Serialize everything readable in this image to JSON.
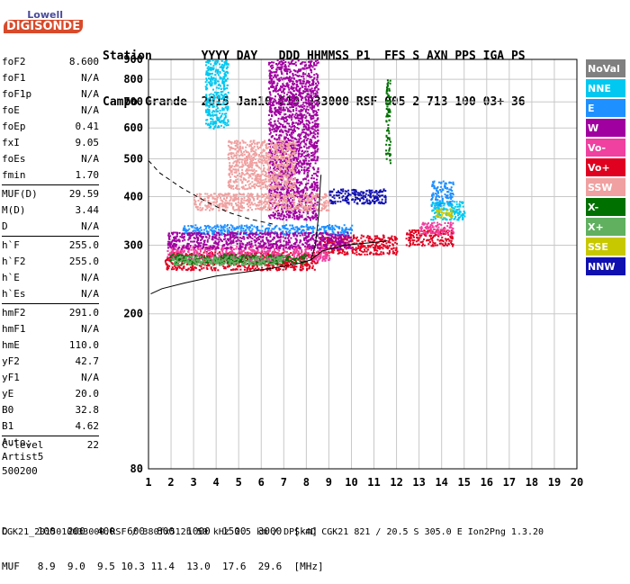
{
  "logo": {
    "top": "Lowell",
    "bottom": "DIGISONDE"
  },
  "header": {
    "line1": "Station       YYYY DAY   DDD HHMMSS P1  FFS S AXN PPS IGA PS",
    "line2": "Campo Grande  2015 Jan10 010 033000 RSF 005 2 713 100 03+ 36"
  },
  "params": [
    {
      "label": "foF2",
      "value": "8.600"
    },
    {
      "label": "foF1",
      "value": "N/A"
    },
    {
      "label": "foF1p",
      "value": "N/A"
    },
    {
      "label": "foE",
      "value": "N/A"
    },
    {
      "label": "foEp",
      "value": "0.41"
    },
    {
      "label": "fxI",
      "value": "9.05"
    },
    {
      "label": "foEs",
      "value": "N/A"
    },
    {
      "label": "fmin",
      "value": "1.70"
    },
    {
      "sep": true
    },
    {
      "label": "MUF(D)",
      "value": "29.59"
    },
    {
      "label": "M(D)",
      "value": "3.44"
    },
    {
      "label": "D",
      "value": "N/A"
    },
    {
      "sep": true
    },
    {
      "label": "h`F",
      "value": "255.0"
    },
    {
      "label": "h`F2",
      "value": "255.0"
    },
    {
      "label": "h`E",
      "value": "N/A"
    },
    {
      "label": "h`Es",
      "value": "N/A"
    },
    {
      "sep": true
    },
    {
      "label": "hmF2",
      "value": "291.0"
    },
    {
      "label": "hmF1",
      "value": "N/A"
    },
    {
      "label": "hmE",
      "value": "110.0"
    },
    {
      "label": "yF2",
      "value": "42.7"
    },
    {
      "label": "yF1",
      "value": "N/A"
    },
    {
      "label": "yE",
      "value": "20.0"
    },
    {
      "label": "B0",
      "value": "32.8"
    },
    {
      "label": "B1",
      "value": "4.62"
    },
    {
      "sep": true
    },
    {
      "label": "C-level",
      "value": "22"
    }
  ],
  "auto": {
    "line1": "Auto:",
    "line2": "Artist5",
    "line3": "500200"
  },
  "footer": {
    "d_row": "D     100  200  400  600  800  1000  1500  3000  [km]",
    "muf_row": "MUF   8.9  9.0  9.5 10.3 11.4  13.0  17.6  29.6  [MHz]",
    "info": "CGK21_2015010033000.RSF / 380fx512h 50 kHz 2.5 km / DPS-4D CGK21 821 / 20.5 S 305.0 E Ion2Png 1.3.20"
  },
  "legend": [
    {
      "label": "NoVal",
      "color": "#808080"
    },
    {
      "label": "NNE",
      "color": "#00c8f0"
    },
    {
      "label": "E",
      "color": "#1e90ff"
    },
    {
      "label": "W",
      "color": "#a000a0"
    },
    {
      "label": "Vo-",
      "color": "#f040a0"
    },
    {
      "label": "Vo+",
      "color": "#e00020"
    },
    {
      "label": "SSW",
      "color": "#f0a0a0"
    },
    {
      "label": "X-",
      "color": "#007000"
    },
    {
      "label": "X+",
      "color": "#60b060"
    },
    {
      "label": "SSE",
      "color": "#c8c800"
    },
    {
      "label": "NNW",
      "color": "#1010b0"
    }
  ],
  "chart_data": {
    "type": "scatter",
    "xlabel": "",
    "ylabel": "",
    "xlim": [
      1,
      20
    ],
    "ylim": [
      80,
      900
    ],
    "yscale": "log",
    "xticks": [
      1,
      2,
      3,
      4,
      5,
      6,
      7,
      8,
      9,
      10,
      11,
      12,
      13,
      14,
      15,
      16,
      17,
      18,
      19,
      20
    ],
    "yticks": [
      80,
      200,
      300,
      400,
      500,
      600,
      700,
      800,
      900
    ],
    "grid": true,
    "series": [
      {
        "name": "Vo+",
        "color": "#e00020",
        "clusters": [
          {
            "x": [
              1.7,
              8.5
            ],
            "y": [
              260,
              290
            ]
          },
          {
            "x": [
              8.5,
              12
            ],
            "y": [
              285,
              320
            ]
          },
          {
            "x": [
              12.4,
              14.5
            ],
            "y": [
              300,
              330
            ]
          }
        ]
      },
      {
        "name": "Vo-",
        "color": "#f040a0",
        "clusters": [
          {
            "x": [
              1.8,
              9
            ],
            "y": [
              275,
              300
            ]
          },
          {
            "x": [
              13,
              14.5
            ],
            "y": [
              320,
              345
            ]
          }
        ]
      },
      {
        "name": "E",
        "color": "#1e90ff",
        "clusters": [
          {
            "x": [
              2.5,
              10
            ],
            "y": [
              320,
              340
            ]
          },
          {
            "x": [
              13.5,
              14.5
            ],
            "y": [
              380,
              440
            ]
          }
        ]
      },
      {
        "name": "W",
        "color": "#a000a0",
        "clusters": [
          {
            "x": [
              1.8,
              10
            ],
            "y": [
              295,
              325
            ]
          },
          {
            "x": [
              6.3,
              8.5
            ],
            "y": [
              350,
              900
            ]
          }
        ]
      },
      {
        "name": "SSW",
        "color": "#f0a0a0",
        "clusters": [
          {
            "x": [
              3,
              9
            ],
            "y": [
              370,
              410
            ]
          },
          {
            "x": [
              4.5,
              7.5
            ],
            "y": [
              420,
              560
            ]
          }
        ]
      },
      {
        "name": "NNW",
        "color": "#1010b0",
        "clusters": [
          {
            "x": [
              9,
              11.5
            ],
            "y": [
              385,
              420
            ]
          }
        ]
      },
      {
        "name": "NNE",
        "color": "#00c8f0",
        "clusters": [
          {
            "x": [
              13.5,
              15
            ],
            "y": [
              350,
              390
            ]
          },
          {
            "x": [
              3.5,
              4.5
            ],
            "y": [
              600,
              900
            ]
          }
        ]
      },
      {
        "name": "SSE",
        "color": "#c8c800",
        "clusters": [
          {
            "x": [
              13.7,
              14.5
            ],
            "y": [
              355,
              375
            ]
          }
        ]
      },
      {
        "name": "X-",
        "color": "#007000",
        "clusters": [
          {
            "x": [
              1.8,
              8
            ],
            "y": [
              270,
              285
            ]
          },
          {
            "x": [
              11.5,
              11.7
            ],
            "y": [
              480,
              800
            ]
          }
        ]
      },
      {
        "name": "X+",
        "color": "#60b060",
        "clusters": [
          {
            "x": [
              2,
              7
            ],
            "y": [
              268,
              282
            ]
          }
        ]
      }
    ],
    "profile_lines": [
      {
        "style": "solid",
        "x": [
          1.1,
          1.6,
          2.6,
          4,
          5.5,
          6.5,
          7.5,
          8.2,
          8.7,
          9.7,
          11,
          11.6
        ],
        "y": [
          225,
          232,
          240,
          250,
          257,
          262,
          268,
          275,
          290,
          300,
          305,
          308
        ]
      },
      {
        "style": "solid",
        "x": [
          8.2,
          8.4,
          8.55,
          8.62,
          8.65
        ],
        "y": [
          275,
          300,
          360,
          430,
          455
        ]
      },
      {
        "style": "dashed",
        "x": [
          1,
          1.5,
          2.5,
          3.5,
          4.5,
          5.5,
          6.5
        ],
        "y": [
          495,
          460,
          420,
          390,
          365,
          350,
          340
        ]
      }
    ]
  }
}
